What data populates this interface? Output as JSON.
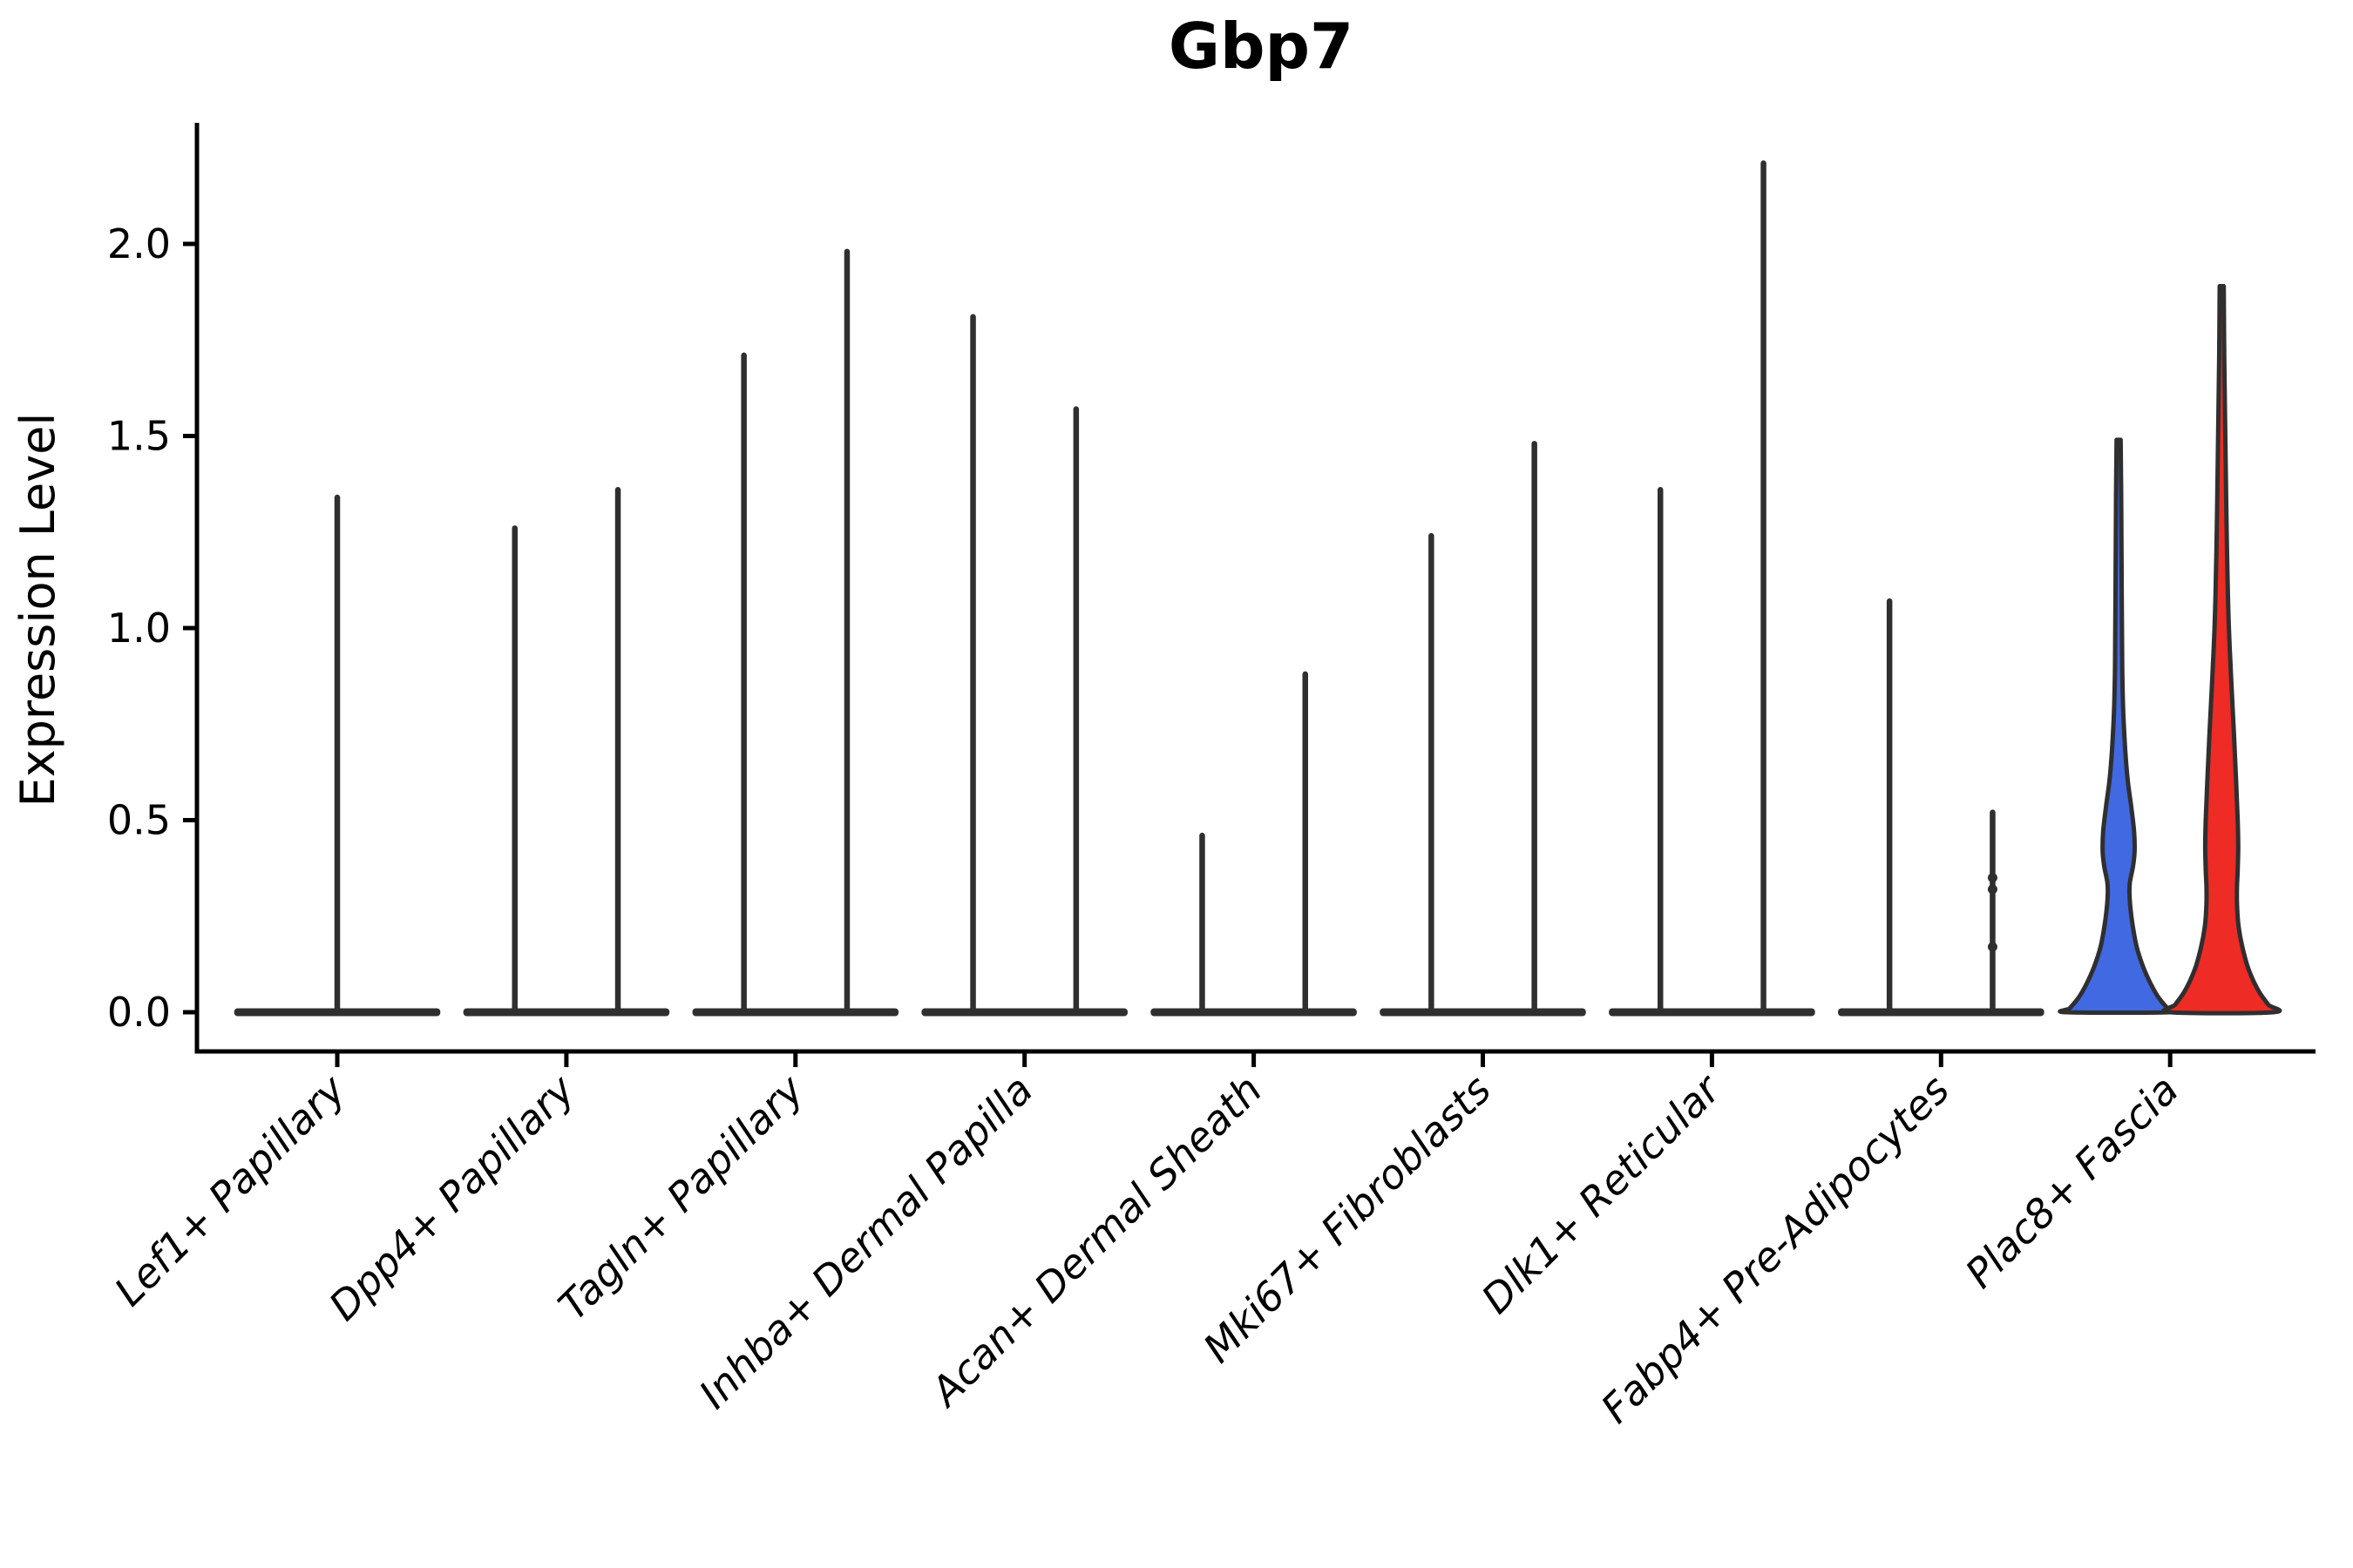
{
  "title": "Gbp7",
  "y_axis": {
    "label": "Expression Level",
    "tick_labels": [
      "0.0",
      "0.5",
      "1.0",
      "1.5",
      "2.0"
    ],
    "tick_values": [
      0.0,
      0.5,
      1.0,
      1.5,
      2.0
    ]
  },
  "x_axis": {
    "categories": [
      "Lef1+ Papillary",
      "Dpp4+ Papillary",
      "Tagln+ Papillary",
      "Inhba+ Dermal Papilla",
      "Acan+ Dermal Sheath",
      "Mki67+ Fibroblasts",
      "Dlk1+ Reticular",
      "Fabp4+ Pre-Adipocytes",
      "Plac8+ Fascia"
    ]
  },
  "colors": {
    "axis": "#000000",
    "violin_outline": "#2f2f2f",
    "blue_fill": "#4169e1",
    "red_fill": "#ee2b24",
    "background": "#ffffff"
  },
  "chart_data": {
    "type": "violin",
    "title": "Gbp7",
    "xlabel": "",
    "ylabel": "Expression Level",
    "ylim": [
      -0.11,
      2.31
    ],
    "yticks": [
      0.0,
      0.5,
      1.0,
      1.5,
      2.0
    ],
    "grid": false,
    "legend": "none",
    "categories": [
      "Lef1+ Papillary",
      "Dpp4+ Papillary",
      "Tagln+ Papillary",
      "Inhba+ Dermal Papilla",
      "Acan+ Dermal Sheath",
      "Mki67+ Fibroblasts",
      "Dlk1+ Reticular",
      "Fabp4+ Pre-Adipocytes",
      "Plac8+ Fascia"
    ],
    "cells": [
      {
        "category": "Lef1+ Papillary",
        "violins": [
          {
            "pos": "center",
            "max": 1.34,
            "style": "spike",
            "fill": null
          }
        ]
      },
      {
        "category": "Dpp4+ Papillary",
        "violins": [
          {
            "pos": "left",
            "max": 1.26,
            "style": "spike",
            "fill": null
          },
          {
            "pos": "right",
            "max": 1.36,
            "style": "spike",
            "fill": null
          }
        ]
      },
      {
        "category": "Tagln+ Papillary",
        "violins": [
          {
            "pos": "left",
            "max": 1.71,
            "style": "spike",
            "fill": null
          },
          {
            "pos": "right",
            "max": 1.98,
            "style": "spike",
            "fill": null
          }
        ]
      },
      {
        "category": "Inhba+ Dermal Papilla",
        "violins": [
          {
            "pos": "left",
            "max": 1.81,
            "style": "spike",
            "fill": null
          },
          {
            "pos": "right",
            "max": 1.57,
            "style": "spike",
            "fill": null
          }
        ]
      },
      {
        "category": "Acan+ Dermal Sheath",
        "violins": [
          {
            "pos": "left",
            "max": 0.46,
            "style": "spike",
            "fill": null
          },
          {
            "pos": "right",
            "max": 0.88,
            "style": "spike",
            "fill": null
          }
        ]
      },
      {
        "category": "Mki67+ Fibroblasts",
        "violins": [
          {
            "pos": "left",
            "max": 1.24,
            "style": "spike",
            "fill": null
          },
          {
            "pos": "right",
            "max": 1.48,
            "style": "spike",
            "fill": null
          }
        ]
      },
      {
        "category": "Dlk1+ Reticular",
        "violins": [
          {
            "pos": "left",
            "max": 1.36,
            "style": "spike",
            "fill": null
          },
          {
            "pos": "right",
            "max": 2.21,
            "style": "spike",
            "fill": null
          }
        ]
      },
      {
        "category": "Fabp4+ Pre-Adipocytes",
        "violins": [
          {
            "pos": "left",
            "max": 1.07,
            "style": "spike",
            "fill": null
          },
          {
            "pos": "right",
            "max": 0.52,
            "style": "spike",
            "fill": null,
            "points": [
              0.35,
              0.32,
              0.17
            ]
          }
        ]
      },
      {
        "category": "Plac8+ Fascia",
        "violins": [
          {
            "pos": "left",
            "max": 1.49,
            "style": "shaped",
            "fill": "blue_fill",
            "profile": [
              [
                1.49,
                0.04
              ],
              [
                1.35,
                0.05
              ],
              [
                1.1,
                0.06
              ],
              [
                0.9,
                0.07
              ],
              [
                0.78,
                0.09
              ],
              [
                0.68,
                0.13
              ],
              [
                0.6,
                0.18
              ],
              [
                0.53,
                0.25
              ],
              [
                0.47,
                0.3
              ],
              [
                0.42,
                0.31
              ],
              [
                0.38,
                0.28
              ],
              [
                0.34,
                0.22
              ],
              [
                0.31,
                0.21
              ],
              [
                0.27,
                0.23
              ],
              [
                0.22,
                0.28
              ],
              [
                0.17,
                0.35
              ],
              [
                0.12,
                0.47
              ],
              [
                0.08,
                0.6
              ],
              [
                0.05,
                0.72
              ],
              [
                0.03,
                0.82
              ],
              [
                0.01,
                0.95
              ],
              [
                0.0,
                1.0
              ]
            ]
          },
          {
            "pos": "right",
            "max": 1.89,
            "style": "shaped",
            "fill": "red_fill",
            "profile": [
              [
                1.89,
                0.04
              ],
              [
                1.7,
                0.05
              ],
              [
                1.5,
                0.07
              ],
              [
                1.3,
                0.09
              ],
              [
                1.15,
                0.11
              ],
              [
                1.0,
                0.14
              ],
              [
                0.85,
                0.19
              ],
              [
                0.72,
                0.24
              ],
              [
                0.6,
                0.28
              ],
              [
                0.5,
                0.31
              ],
              [
                0.43,
                0.32
              ],
              [
                0.37,
                0.31
              ],
              [
                0.32,
                0.295
              ],
              [
                0.27,
                0.3
              ],
              [
                0.22,
                0.33
              ],
              [
                0.17,
                0.4
              ],
              [
                0.12,
                0.5
              ],
              [
                0.08,
                0.62
              ],
              [
                0.05,
                0.74
              ],
              [
                0.02,
                0.9
              ],
              [
                0.0,
                1.0
              ]
            ]
          }
        ]
      }
    ]
  }
}
